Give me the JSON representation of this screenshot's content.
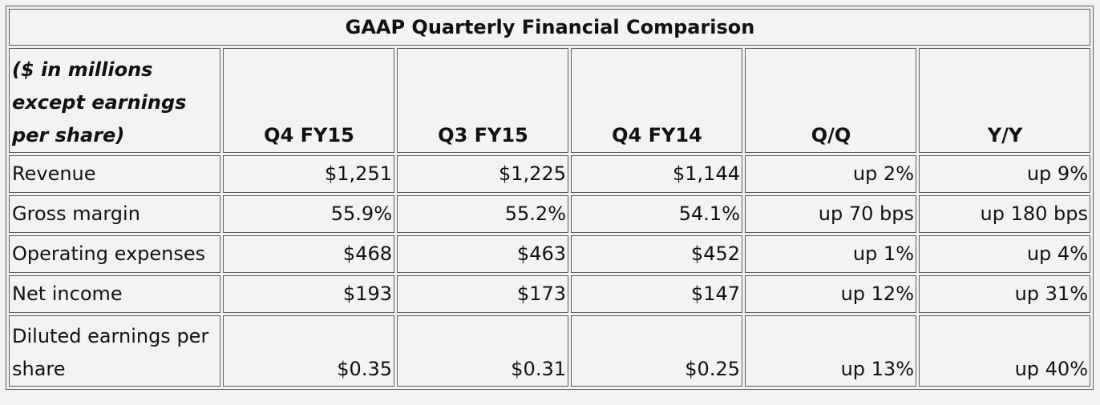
{
  "title": "GAAP Quarterly Financial Comparison",
  "header": {
    "label": "($ in millions except earnings per share)",
    "columns": [
      "Q4 FY15",
      "Q3 FY15",
      "Q4 FY14",
      "Q/Q",
      "Y/Y"
    ]
  },
  "rows": [
    {
      "label": "Revenue",
      "values": [
        "$1,251",
        "$1,225",
        "$1,144",
        "up 2%",
        "up 9%"
      ]
    },
    {
      "label": "Gross margin",
      "values": [
        "55.9%",
        "55.2%",
        "54.1%",
        "up 70 bps",
        "up 180 bps"
      ]
    },
    {
      "label": "Operating expenses",
      "values": [
        "$468",
        "$463",
        "$452",
        "up 1%",
        "up 4%"
      ]
    },
    {
      "label": "Net income",
      "values": [
        "$193",
        "$173",
        "$147",
        "up 12%",
        "up 31%"
      ]
    },
    {
      "label": "Diluted earnings per share",
      "values": [
        "$0.35",
        "$0.31",
        "$0.25",
        "up 13%",
        "up 40%"
      ]
    }
  ]
}
